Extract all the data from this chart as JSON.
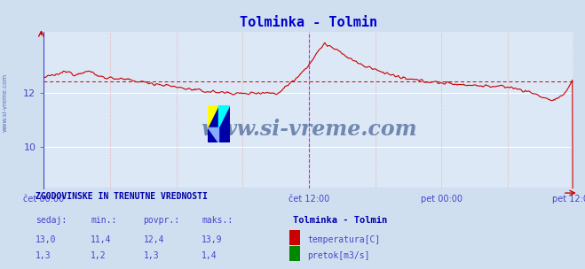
{
  "title": "Tolminka - Tolmin",
  "title_color": "#0000cc",
  "bg_color": "#d0dff0",
  "plot_bg_color": "#dce8f5",
  "grid_color": "#ffffff",
  "grid_major_color": "#ccccff",
  "grid_minor_color": "#e8d0d0",
  "xlabel_ticks": [
    "čet 00:00",
    "čet 12:00",
    "pet 00:00",
    "pet 12:00"
  ],
  "ylim": [
    8.5,
    14.2
  ],
  "yticks": [
    10,
    12
  ],
  "temp_color": "#cc0000",
  "temp_avg": 12.4,
  "flow_color": "#008800",
  "flow_avg": 1.3,
  "blue_line_color": "#4444cc",
  "watermark": "www.si-vreme.com",
  "watermark_color": "#1a3a7a",
  "left_label": "www.si-vreme.com",
  "footer_title": "ZGODOVINSKE IN TRENUTNE VREDNOSTI",
  "footer_cols": [
    "sedaj:",
    "min.:",
    "povpr.:",
    "maks.:"
  ],
  "footer_station": "Tolminka - Tolmin",
  "footer_temp_vals": [
    "13,0",
    "11,4",
    "12,4",
    "13,9"
  ],
  "footer_flow_vals": [
    "1,3",
    "1,2",
    "1,3",
    "1,4"
  ],
  "footer_temp_label": "temperatura[C]",
  "footer_flow_label": "pretok[m3/s]"
}
